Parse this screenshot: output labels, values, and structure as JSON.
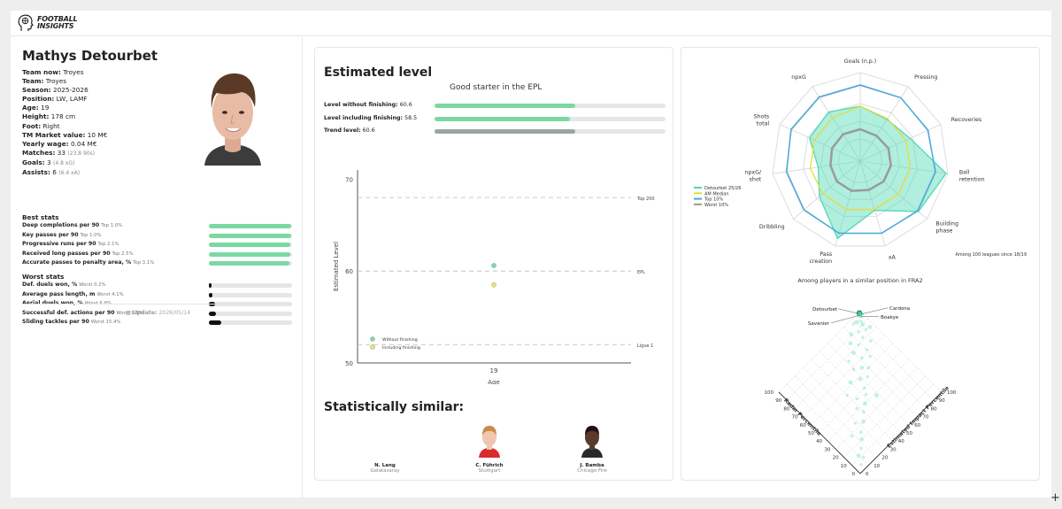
{
  "brand": {
    "line1": "FOOTBALL",
    "line2": "INSIGHTS"
  },
  "player": {
    "name": "Mathys Detourbet",
    "info": [
      {
        "label": "Team now:",
        "value": "Troyes",
        "sub": ""
      },
      {
        "label": "Team:",
        "value": "Troyes",
        "sub": ""
      },
      {
        "label": "Season:",
        "value": "2025-2026",
        "sub": ""
      },
      {
        "label": "Position:",
        "value": "LW, LAMF",
        "sub": ""
      },
      {
        "label": "Age:",
        "value": "19",
        "sub": ""
      },
      {
        "label": "Height:",
        "value": "178 cm",
        "sub": ""
      },
      {
        "label": "Foot:",
        "value": "Right",
        "sub": ""
      },
      {
        "label": "TM Market value:",
        "value": "10 M€",
        "sub": ""
      },
      {
        "label": "Yearly wage:",
        "value": "0.04 M€",
        "sub": ""
      },
      {
        "label": "Matches:",
        "value": "33",
        "sub": "(23,8 90s)"
      },
      {
        "label": "Goals:",
        "value": "3",
        "sub": "(4.8 xG)"
      },
      {
        "label": "Assists:",
        "value": "6",
        "sub": "(6.4 xA)"
      }
    ]
  },
  "best_stats": {
    "title": "Best stats",
    "items": [
      {
        "label": "Deep completions per 90",
        "rank": "Top 1.0%",
        "fraction": 0.99
      },
      {
        "label": "Key passes per 90",
        "rank": "Top 1.0%",
        "fraction": 0.99
      },
      {
        "label": "Progressive runs per 90",
        "rank": "Top 2.1%",
        "fraction": 0.98
      },
      {
        "label": "Received long passes per 90",
        "rank": "Top 2.5%",
        "fraction": 0.975
      },
      {
        "label": "Accurate passes to penalty area, %",
        "rank": "Top 3.1%",
        "fraction": 0.97
      }
    ]
  },
  "worst_stats": {
    "title": "Worst stats",
    "items": [
      {
        "label": "Def. duels won, %",
        "rank": "Worst 0.2%",
        "fraction": 0.0
      },
      {
        "label": "Average pass length, m",
        "rank": "Worst 4.1%",
        "fraction": 0.04
      },
      {
        "label": "Aerial duels won, %",
        "rank": "Worst 6.8%",
        "fraction": 0.07
      },
      {
        "label": "Successful def. actions per 90",
        "rank": "Worst 9.1%",
        "fraction": 0.09
      },
      {
        "label": "Sliding tackles per 90",
        "rank": "Worst 15.4%",
        "fraction": 0.15
      }
    ]
  },
  "update": {
    "label": "Update:",
    "date": "2026/05/14"
  },
  "level": {
    "title": "Estimated level",
    "verdict": "Good starter in the EPL",
    "rows": [
      {
        "label": "Level without finishing:",
        "value": "60.6",
        "fraction": 0.61,
        "color": "#7bd8a3"
      },
      {
        "label": "Level including finishing:",
        "value": "58.5",
        "fraction": 0.585,
        "color": "#7bd8a3"
      },
      {
        "label": "Trend level:",
        "value": "60.6",
        "fraction": 0.61,
        "color": "#9aa6a2"
      }
    ]
  },
  "chart_data": [
    {
      "type": "scatter",
      "xlabel": "Age",
      "ylabel": "Estimated Level",
      "x_ticks": [
        "19"
      ],
      "y_ticks": [
        50,
        60,
        70
      ],
      "ylim": [
        50,
        71
      ],
      "reference_lines": [
        {
          "label": "Top 200",
          "y": 68
        },
        {
          "label": "EPL",
          "y": 60
        },
        {
          "label": "Ligue 1",
          "y": 52
        }
      ],
      "series": [
        {
          "name": "Without finishing",
          "color": "#7bd8b4",
          "points": [
            {
              "x": "19",
              "y": 60.6
            }
          ]
        },
        {
          "name": "Including finishing",
          "color": "#f2e45a",
          "points": [
            {
              "x": "19",
              "y": 58.5
            }
          ]
        }
      ]
    },
    {
      "type": "radar",
      "axes": [
        "Goals (n.p.)",
        "Pressing",
        "Recoveries",
        "Ball\nretention",
        "Building\nphase",
        "xA",
        "Pass\ncreation",
        "Dribbling",
        "npxG/\nshot",
        "Shots\ntotal",
        "npxG"
      ],
      "series": [
        {
          "name": "Detourbet 25/26",
          "color": "#4fd9b6",
          "values": [
            0.62,
            0.56,
            0.62,
            0.98,
            0.87,
            0.58,
            0.91,
            0.61,
            0.48,
            0.63,
            0.66
          ]
        },
        {
          "name": "AM Median",
          "color": "#e5dd3a",
          "values": [
            0.62,
            0.57,
            0.57,
            0.57,
            0.57,
            0.57,
            0.57,
            0.56,
            0.57,
            0.57,
            0.58
          ]
        },
        {
          "name": "Top 10%",
          "color": "#4aa8db",
          "values": [
            0.86,
            0.85,
            0.84,
            0.86,
            0.86,
            0.85,
            0.85,
            0.84,
            0.84,
            0.86,
            0.86
          ]
        },
        {
          "name": "Worst 10%",
          "color": "#9a9a9a",
          "values": [
            0.36,
            0.34,
            0.35,
            0.35,
            0.35,
            0.34,
            0.35,
            0.35,
            0.34,
            0.35,
            0.36
          ]
        }
      ],
      "footnote": "Among 100 leagues since 18/19"
    },
    {
      "type": "scatter",
      "title": "Among players in a similar position in FRA2",
      "xlabel": "Radar Percentile",
      "ylabel": "Estimated Impact Percentile",
      "ticks": [
        0,
        10,
        20,
        30,
        40,
        50,
        60,
        70,
        80,
        90,
        100
      ],
      "highlight": {
        "name": "Detourbet",
        "radar": 99,
        "impact": 98
      },
      "labels": [
        {
          "name": "Cardona",
          "radar": 97,
          "impact": 99
        },
        {
          "name": "Boakye",
          "radar": 96,
          "impact": 97
        },
        {
          "name": "Savanier",
          "radar": 98,
          "impact": 96
        }
      ],
      "points": [
        {
          "radar": 95,
          "impact": 91
        },
        {
          "radar": 93,
          "impact": 94
        },
        {
          "radar": 96,
          "impact": 88
        },
        {
          "radar": 90,
          "impact": 93
        },
        {
          "radar": 88,
          "impact": 86
        },
        {
          "radar": 85,
          "impact": 92
        },
        {
          "radar": 91,
          "impact": 80
        },
        {
          "radar": 82,
          "impact": 85
        },
        {
          "radar": 80,
          "impact": 78
        },
        {
          "radar": 86,
          "impact": 74
        },
        {
          "radar": 75,
          "impact": 88
        },
        {
          "radar": 72,
          "impact": 80
        },
        {
          "radar": 78,
          "impact": 70
        },
        {
          "radar": 70,
          "impact": 72
        },
        {
          "radar": 66,
          "impact": 78
        },
        {
          "radar": 64,
          "impact": 66
        },
        {
          "radar": 60,
          "impact": 70
        },
        {
          "radar": 68,
          "impact": 60
        },
        {
          "radar": 58,
          "impact": 58
        },
        {
          "radar": 55,
          "impact": 64
        },
        {
          "radar": 50,
          "impact": 55
        },
        {
          "radar": 62,
          "impact": 50
        },
        {
          "radar": 45,
          "impact": 52
        },
        {
          "radar": 48,
          "impact": 44
        },
        {
          "radar": 40,
          "impact": 46
        },
        {
          "radar": 42,
          "impact": 38
        },
        {
          "radar": 36,
          "impact": 40
        },
        {
          "radar": 30,
          "impact": 34
        },
        {
          "radar": 34,
          "impact": 28
        },
        {
          "radar": 25,
          "impact": 26
        },
        {
          "radar": 20,
          "impact": 22
        },
        {
          "radar": 28,
          "impact": 18
        },
        {
          "radar": 15,
          "impact": 16
        },
        {
          "radar": 12,
          "impact": 10
        },
        {
          "radar": 8,
          "impact": 12
        },
        {
          "radar": 5,
          "impact": 6
        },
        {
          "radar": 84,
          "impact": 96
        },
        {
          "radar": 76,
          "impact": 62
        },
        {
          "radar": 56,
          "impact": 40
        },
        {
          "radar": 38,
          "impact": 58
        }
      ]
    }
  ],
  "similar": {
    "title": "Statistically similar:",
    "players": [
      {
        "name": "N. Lang",
        "club": "Galatasaray"
      },
      {
        "name": "C. Führich",
        "club": "Stuttgart"
      },
      {
        "name": "J. Bamba",
        "club": "Chicago Fire"
      }
    ]
  },
  "plus_label": "+"
}
